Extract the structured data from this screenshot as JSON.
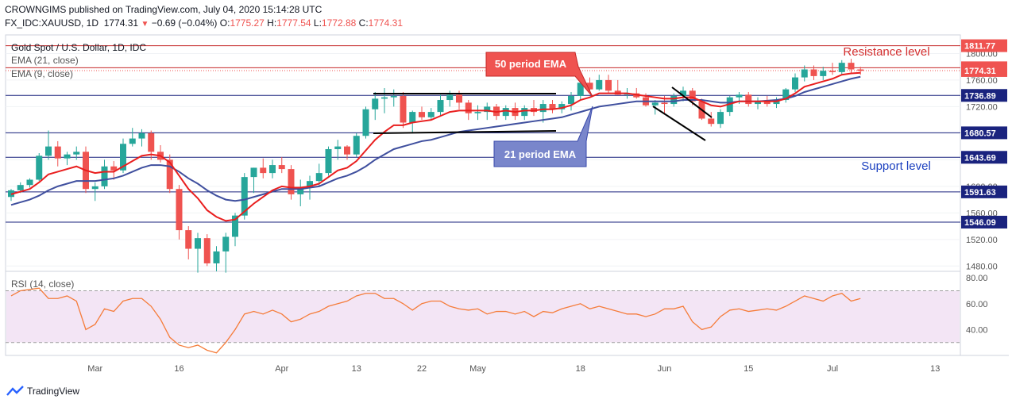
{
  "header": {
    "publisher_line": "CROWNGIMS published on TradingView.com, July 04, 2020 15:14:28 UTC",
    "symbol": "FX_IDC:XAUUSD, 1D",
    "last": "1774.31",
    "change_arrow": "▼",
    "change": "−0.69 (−0.04%)",
    "o_label": "O:",
    "o": "1775.27",
    "h_label": "H:",
    "h": "1777.54",
    "l_label": "L:",
    "l": "1772.88",
    "c_label": "C:",
    "c": "1774.31"
  },
  "legend": {
    "title": "Gold Spot / U.S. Dollar, 1D, IDC",
    "ema21": "EMA (21, close)",
    "ema9": "EMA (9, close)",
    "rsi": "RSI (14, close)"
  },
  "annotations": {
    "ema50": "50 period EMA",
    "ema21": "21 period EMA",
    "resistance": "Resistance level",
    "support": "Support level"
  },
  "footer": {
    "brand": "TradingView"
  },
  "colors": {
    "up": "#26a69a",
    "down": "#ef5350",
    "ema9": "#e91e1e",
    "ema21": "#3f4f9e",
    "hline": "#1a237e",
    "resistance_line": "#c62828",
    "rsi_line": "#f57c3a",
    "rsi_band": "#f3e5f5"
  },
  "chart_data": {
    "type": "candlestick",
    "y_ticks": [
      "1800.00",
      "1760.00",
      "1720.00",
      "1680.00",
      "1640.00",
      "1600.00",
      "1560.00",
      "1520.00",
      "1480.00"
    ],
    "ylim": [
      1472,
      1828
    ],
    "x_ticks": [
      "Mar",
      "16",
      "Apr",
      "13",
      "22",
      "May",
      "18",
      "Jun",
      "15",
      "Jul",
      "13"
    ],
    "price_levels": [
      {
        "label": "1811.77",
        "kind": "resistance"
      },
      {
        "label": "1778.55",
        "kind": "resistance"
      },
      {
        "label": "1774.31",
        "kind": "last"
      },
      {
        "label": "1736.89",
        "kind": "level"
      },
      {
        "label": "1680.57",
        "kind": "level"
      },
      {
        "label": "1643.69",
        "kind": "level"
      },
      {
        "label": "1591.63",
        "kind": "level"
      },
      {
        "label": "1546.09",
        "kind": "level"
      }
    ],
    "candles": [
      [
        1584,
        1596,
        1578,
        1594
      ],
      [
        1594,
        1606,
        1590,
        1602
      ],
      [
        1602,
        1612,
        1598,
        1610
      ],
      [
        1610,
        1650,
        1608,
        1646
      ],
      [
        1646,
        1684,
        1640,
        1660
      ],
      [
        1660,
        1668,
        1630,
        1642
      ],
      [
        1642,
        1652,
        1632,
        1648
      ],
      [
        1648,
        1660,
        1640,
        1652
      ],
      [
        1652,
        1660,
        1590,
        1596
      ],
      [
        1596,
        1606,
        1578,
        1600
      ],
      [
        1600,
        1640,
        1596,
        1630
      ],
      [
        1630,
        1638,
        1610,
        1624
      ],
      [
        1624,
        1672,
        1620,
        1664
      ],
      [
        1664,
        1688,
        1660,
        1672
      ],
      [
        1672,
        1686,
        1660,
        1680
      ],
      [
        1680,
        1684,
        1640,
        1652
      ],
      [
        1652,
        1662,
        1636,
        1640
      ],
      [
        1640,
        1648,
        1590,
        1596
      ],
      [
        1596,
        1602,
        1520,
        1534
      ],
      [
        1534,
        1540,
        1490,
        1506
      ],
      [
        1506,
        1530,
        1470,
        1522
      ],
      [
        1522,
        1528,
        1480,
        1484
      ],
      [
        1484,
        1510,
        1472,
        1502
      ],
      [
        1502,
        1530,
        1470,
        1524
      ],
      [
        1524,
        1560,
        1510,
        1556
      ],
      [
        1556,
        1620,
        1550,
        1614
      ],
      [
        1614,
        1628,
        1590,
        1628
      ],
      [
        1628,
        1642,
        1612,
        1620
      ],
      [
        1620,
        1640,
        1612,
        1632
      ],
      [
        1632,
        1644,
        1620,
        1626
      ],
      [
        1626,
        1632,
        1580,
        1588
      ],
      [
        1588,
        1610,
        1570,
        1598
      ],
      [
        1598,
        1616,
        1580,
        1608
      ],
      [
        1608,
        1634,
        1600,
        1620
      ],
      [
        1620,
        1660,
        1616,
        1656
      ],
      [
        1656,
        1670,
        1640,
        1660
      ],
      [
        1660,
        1662,
        1640,
        1648
      ],
      [
        1648,
        1680,
        1644,
        1676
      ],
      [
        1676,
        1720,
        1672,
        1716
      ],
      [
        1716,
        1742,
        1700,
        1732
      ],
      [
        1732,
        1748,
        1710,
        1734
      ],
      [
        1734,
        1746,
        1720,
        1736
      ],
      [
        1736,
        1742,
        1688,
        1696
      ],
      [
        1696,
        1714,
        1680,
        1712
      ],
      [
        1712,
        1720,
        1700,
        1704
      ],
      [
        1704,
        1718,
        1700,
        1712
      ],
      [
        1712,
        1738,
        1706,
        1730
      ],
      [
        1730,
        1744,
        1720,
        1738
      ],
      [
        1738,
        1744,
        1716,
        1726
      ],
      [
        1726,
        1730,
        1700,
        1710
      ],
      [
        1710,
        1722,
        1700,
        1712
      ],
      [
        1712,
        1726,
        1700,
        1720
      ],
      [
        1720,
        1724,
        1700,
        1706
      ],
      [
        1706,
        1722,
        1700,
        1718
      ],
      [
        1718,
        1726,
        1700,
        1706
      ],
      [
        1706,
        1722,
        1700,
        1718
      ],
      [
        1718,
        1730,
        1706,
        1712
      ],
      [
        1712,
        1730,
        1696,
        1724
      ],
      [
        1724,
        1730,
        1710,
        1716
      ],
      [
        1716,
        1728,
        1710,
        1724
      ],
      [
        1724,
        1742,
        1714,
        1736
      ],
      [
        1736,
        1762,
        1730,
        1756
      ],
      [
        1756,
        1764,
        1740,
        1746
      ],
      [
        1746,
        1768,
        1744,
        1760
      ],
      [
        1760,
        1768,
        1740,
        1744
      ],
      [
        1744,
        1760,
        1738,
        1738
      ],
      [
        1738,
        1748,
        1732,
        1740
      ],
      [
        1740,
        1748,
        1732,
        1734
      ],
      [
        1734,
        1740,
        1720,
        1722
      ],
      [
        1722,
        1730,
        1708,
        1726
      ],
      [
        1726,
        1736,
        1710,
        1724
      ],
      [
        1724,
        1740,
        1720,
        1736
      ],
      [
        1736,
        1750,
        1728,
        1744
      ],
      [
        1744,
        1748,
        1722,
        1728
      ],
      [
        1728,
        1732,
        1700,
        1702
      ],
      [
        1702,
        1712,
        1690,
        1694
      ],
      [
        1694,
        1716,
        1688,
        1712
      ],
      [
        1712,
        1736,
        1706,
        1734
      ],
      [
        1734,
        1742,
        1724,
        1738
      ],
      [
        1738,
        1742,
        1720,
        1724
      ],
      [
        1724,
        1734,
        1716,
        1728
      ],
      [
        1728,
        1736,
        1720,
        1724
      ],
      [
        1724,
        1734,
        1718,
        1730
      ],
      [
        1730,
        1748,
        1726,
        1746
      ],
      [
        1746,
        1770,
        1742,
        1764
      ],
      [
        1764,
        1782,
        1758,
        1776
      ],
      [
        1776,
        1782,
        1760,
        1766
      ],
      [
        1766,
        1780,
        1760,
        1774
      ],
      [
        1774,
        1786,
        1768,
        1772
      ],
      [
        1772,
        1790,
        1768,
        1786
      ],
      [
        1786,
        1792,
        1770,
        1776
      ],
      [
        1776,
        1780,
        1768,
        1774
      ]
    ],
    "ema9": [
      1588,
      1592,
      1596,
      1606,
      1618,
      1622,
      1626,
      1630,
      1624,
      1620,
      1622,
      1622,
      1630,
      1638,
      1646,
      1648,
      1646,
      1636,
      1616,
      1596,
      1582,
      1564,
      1554,
      1548,
      1550,
      1562,
      1574,
      1584,
      1594,
      1600,
      1598,
      1598,
      1600,
      1604,
      1614,
      1624,
      1628,
      1638,
      1654,
      1670,
      1682,
      1692,
      1692,
      1696,
      1698,
      1700,
      1706,
      1712,
      1714,
      1714,
      1714,
      1714,
      1712,
      1714,
      1712,
      1714,
      1714,
      1716,
      1716,
      1718,
      1722,
      1730,
      1734,
      1740,
      1740,
      1740,
      1740,
      1738,
      1736,
      1734,
      1732,
      1732,
      1734,
      1734,
      1728,
      1722,
      1720,
      1724,
      1728,
      1728,
      1728,
      1728,
      1728,
      1732,
      1740,
      1750,
      1754,
      1758,
      1762,
      1768,
      1770,
      1771
    ],
    "ema21": [
      1572,
      1576,
      1580,
      1586,
      1594,
      1600,
      1604,
      1608,
      1608,
      1608,
      1610,
      1612,
      1616,
      1622,
      1628,
      1632,
      1632,
      1630,
      1622,
      1612,
      1604,
      1594,
      1586,
      1580,
      1578,
      1580,
      1584,
      1588,
      1592,
      1596,
      1596,
      1596,
      1598,
      1600,
      1606,
      1612,
      1616,
      1622,
      1630,
      1640,
      1648,
      1656,
      1660,
      1664,
      1668,
      1670,
      1674,
      1678,
      1682,
      1684,
      1686,
      1688,
      1690,
      1692,
      1694,
      1696,
      1698,
      1700,
      1702,
      1704,
      1708,
      1712,
      1716,
      1720,
      1722,
      1724,
      1726,
      1728,
      1728,
      1728,
      1728,
      1728,
      1730,
      1730,
      1730,
      1728,
      1726,
      1726,
      1728,
      1728,
      1728,
      1729,
      1730,
      1732,
      1736,
      1742,
      1746,
      1750,
      1754,
      1758,
      1762,
      1765
    ],
    "rsi": [
      66,
      70,
      71,
      72,
      64,
      64,
      66,
      62,
      40,
      44,
      56,
      54,
      62,
      64,
      64,
      58,
      48,
      34,
      28,
      26,
      28,
      24,
      22,
      30,
      40,
      52,
      54,
      52,
      55,
      52,
      46,
      48,
      52,
      54,
      58,
      60,
      62,
      66,
      68,
      68,
      64,
      64,
      60,
      55,
      60,
      62,
      62,
      58,
      56,
      55,
      56,
      52,
      54,
      54,
      52,
      54,
      50,
      54,
      53,
      56,
      58,
      60,
      56,
      58,
      56,
      54,
      52,
      52,
      50,
      52,
      56,
      56,
      58,
      46,
      40,
      42,
      50,
      55,
      56,
      54,
      55,
      56,
      55,
      58,
      62,
      66,
      64,
      62,
      66,
      68,
      62,
      64
    ],
    "rsi_ticks": [
      "80.00",
      "60.00",
      "40.00"
    ]
  }
}
